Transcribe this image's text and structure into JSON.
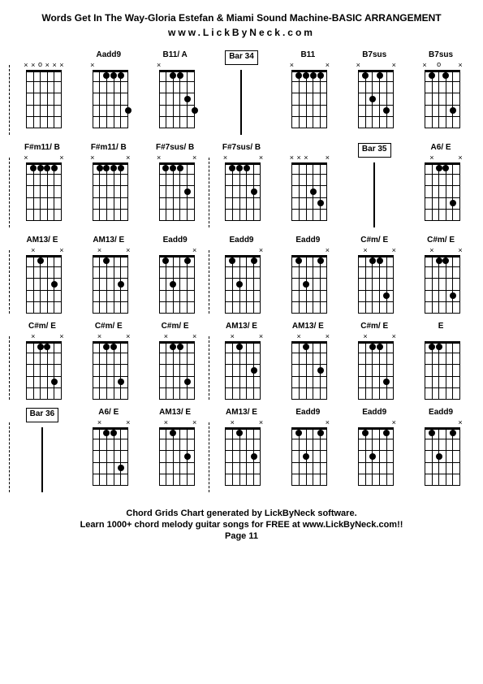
{
  "header": {
    "title": "Words Get In The Way-Gloria Estefan & Miami Sound Machine-BASIC ARRANGEMENT",
    "subtitle": "www.LickByNeck.com"
  },
  "footer": {
    "line1": "Chord Grids Chart generated by LickByNeck software.",
    "line2": "Learn 1000+ chord melody guitar songs for FREE at www.LickByNeck.com!!",
    "line3": "Page 11"
  },
  "chords": [
    {
      "row": 0,
      "col": 0,
      "label": "",
      "type": "chord",
      "markers": [
        "x",
        "x",
        "o",
        "x",
        "x",
        "x"
      ],
      "dots": [],
      "barLine": true
    },
    {
      "row": 0,
      "col": 1,
      "label": "Aadd9",
      "type": "chord",
      "markers": [
        "x",
        "",
        "",
        "",
        "",
        ""
      ],
      "dots": [
        {
          "s": 1,
          "f": 0
        },
        {
          "s": 2,
          "f": 1
        },
        {
          "s": 3,
          "f": 1
        },
        {
          "s": 4,
          "f": 1
        },
        {
          "s": 5,
          "f": 4
        }
      ]
    },
    {
      "row": 0,
      "col": 2,
      "label": "B11/ A",
      "type": "chord",
      "markers": [
        "x",
        "",
        "",
        "",
        "",
        ""
      ],
      "dots": [
        {
          "s": 1,
          "f": 0
        },
        {
          "s": 2,
          "f": 1
        },
        {
          "s": 3,
          "f": 1
        },
        {
          "s": 4,
          "f": 3
        },
        {
          "s": 5,
          "f": 4
        }
      ]
    },
    {
      "row": 0,
      "col": 3,
      "label": "Bar 34",
      "type": "bar",
      "boxed": true
    },
    {
      "row": 0,
      "col": 4,
      "label": "B11",
      "type": "chord",
      "markers": [
        "x",
        "",
        "",
        "",
        "",
        "x"
      ],
      "dots": [
        {
          "s": 1,
          "f": 1
        },
        {
          "s": 2,
          "f": 1
        },
        {
          "s": 3,
          "f": 1
        },
        {
          "s": 4,
          "f": 1
        }
      ]
    },
    {
      "row": 0,
      "col": 5,
      "label": "B7sus",
      "type": "chord",
      "markers": [
        "x",
        "",
        "",
        "",
        "",
        "x"
      ],
      "dots": [
        {
          "s": 1,
          "f": 1
        },
        {
          "s": 2,
          "f": 3
        },
        {
          "s": 3,
          "f": 1
        },
        {
          "s": 4,
          "f": 4
        }
      ]
    },
    {
      "row": 0,
      "col": 6,
      "label": "B7sus",
      "type": "chord",
      "markers": [
        "x",
        "",
        "o",
        "",
        "",
        "x"
      ],
      "dots": [
        {
          "s": 1,
          "f": 1
        },
        {
          "s": 3,
          "f": 1
        },
        {
          "s": 4,
          "f": 4
        }
      ]
    },
    {
      "row": 1,
      "col": 0,
      "label": "F#m11/ B",
      "type": "chord",
      "markers": [
        "x",
        "",
        "",
        "",
        "",
        "x"
      ],
      "dots": [
        {
          "s": 1,
          "f": 1
        },
        {
          "s": 2,
          "f": 1
        },
        {
          "s": 3,
          "f": 1
        },
        {
          "s": 4,
          "f": 1
        }
      ],
      "barLine": true
    },
    {
      "row": 1,
      "col": 1,
      "label": "F#m11/ B",
      "type": "chord",
      "markers": [
        "x",
        "",
        "",
        "",
        "",
        "x"
      ],
      "dots": [
        {
          "s": 1,
          "f": 1
        },
        {
          "s": 2,
          "f": 1
        },
        {
          "s": 3,
          "f": 1
        },
        {
          "s": 4,
          "f": 1
        }
      ]
    },
    {
      "row": 1,
      "col": 2,
      "label": "F#7sus/ B",
      "type": "chord",
      "markers": [
        "x",
        "",
        "",
        "",
        "",
        "x"
      ],
      "dots": [
        {
          "s": 1,
          "f": 1
        },
        {
          "s": 2,
          "f": 1
        },
        {
          "s": 3,
          "f": 1
        },
        {
          "s": 4,
          "f": 3
        }
      ]
    },
    {
      "row": 1,
      "col": 3,
      "label": "F#7sus/ B",
      "type": "chord",
      "markers": [
        "x",
        "",
        "",
        "",
        "",
        "x"
      ],
      "dots": [
        {
          "s": 1,
          "f": 1
        },
        {
          "s": 2,
          "f": 1
        },
        {
          "s": 3,
          "f": 1
        },
        {
          "s": 4,
          "f": 3
        }
      ],
      "barLine": true
    },
    {
      "row": 1,
      "col": 4,
      "label": "",
      "type": "chord",
      "markers": [
        "x",
        "x",
        "x",
        "",
        "",
        "x"
      ],
      "dots": [
        {
          "s": 3,
          "f": 3
        },
        {
          "s": 4,
          "f": 4
        }
      ]
    },
    {
      "row": 1,
      "col": 5,
      "label": "Bar 35",
      "type": "bar",
      "boxed": true
    },
    {
      "row": 1,
      "col": 6,
      "label": "A6/ E",
      "type": "chord",
      "markers": [
        "",
        "x",
        "",
        "",
        "",
        "x"
      ],
      "dots": [
        {
          "s": 0,
          "f": 0
        },
        {
          "s": 2,
          "f": 1
        },
        {
          "s": 3,
          "f": 1
        },
        {
          "s": 4,
          "f": 4
        }
      ]
    },
    {
      "row": 2,
      "col": 0,
      "label": "AM13/ E",
      "type": "chord",
      "markers": [
        "",
        "x",
        "",
        "",
        "",
        "x"
      ],
      "dots": [
        {
          "s": 0,
          "f": 0
        },
        {
          "s": 2,
          "f": 1
        },
        {
          "s": 3,
          "f": 0
        },
        {
          "s": 4,
          "f": 3
        }
      ],
      "barLine": true
    },
    {
      "row": 2,
      "col": 1,
      "label": "AM13/ E",
      "type": "chord",
      "markers": [
        "",
        "x",
        "",
        "",
        "",
        "x"
      ],
      "dots": [
        {
          "s": 0,
          "f": 0
        },
        {
          "s": 2,
          "f": 1
        },
        {
          "s": 3,
          "f": 0
        },
        {
          "s": 4,
          "f": 3
        }
      ]
    },
    {
      "row": 2,
      "col": 2,
      "label": "Eadd9",
      "type": "chord",
      "markers": [
        "",
        "",
        "",
        "",
        "",
        "x"
      ],
      "dots": [
        {
          "s": 0,
          "f": 0
        },
        {
          "s": 1,
          "f": 1
        },
        {
          "s": 2,
          "f": 3
        },
        {
          "s": 3,
          "f": 0
        },
        {
          "s": 4,
          "f": 1
        }
      ]
    },
    {
      "row": 2,
      "col": 3,
      "label": "Eadd9",
      "type": "chord",
      "markers": [
        "",
        "",
        "",
        "",
        "",
        "x"
      ],
      "dots": [
        {
          "s": 0,
          "f": 0
        },
        {
          "s": 1,
          "f": 1
        },
        {
          "s": 2,
          "f": 3
        },
        {
          "s": 3,
          "f": 0
        },
        {
          "s": 4,
          "f": 1
        }
      ],
      "barLine": true
    },
    {
      "row": 2,
      "col": 4,
      "label": "Eadd9",
      "type": "chord",
      "markers": [
        "",
        "",
        "",
        "",
        "",
        "x"
      ],
      "dots": [
        {
          "s": 0,
          "f": 0
        },
        {
          "s": 1,
          "f": 1
        },
        {
          "s": 2,
          "f": 3
        },
        {
          "s": 3,
          "f": 0
        },
        {
          "s": 4,
          "f": 1
        }
      ]
    },
    {
      "row": 2,
      "col": 5,
      "label": "C#m/ E",
      "type": "chord",
      "markers": [
        "",
        "x",
        "",
        "",
        "",
        "x"
      ],
      "dots": [
        {
          "s": 0,
          "f": 0
        },
        {
          "s": 2,
          "f": 1
        },
        {
          "s": 3,
          "f": 1
        },
        {
          "s": 4,
          "f": 4
        }
      ]
    },
    {
      "row": 2,
      "col": 6,
      "label": "C#m/ E",
      "type": "chord",
      "markers": [
        "",
        "x",
        "",
        "",
        "",
        "x"
      ],
      "dots": [
        {
          "s": 0,
          "f": 0
        },
        {
          "s": 2,
          "f": 1
        },
        {
          "s": 3,
          "f": 1
        },
        {
          "s": 4,
          "f": 4
        }
      ]
    },
    {
      "row": 3,
      "col": 0,
      "label": "C#m/ E",
      "type": "chord",
      "markers": [
        "",
        "x",
        "",
        "",
        "",
        "x"
      ],
      "dots": [
        {
          "s": 0,
          "f": 0
        },
        {
          "s": 2,
          "f": 1
        },
        {
          "s": 3,
          "f": 1
        },
        {
          "s": 4,
          "f": 4
        }
      ],
      "barLine": true
    },
    {
      "row": 3,
      "col": 1,
      "label": "C#m/ E",
      "type": "chord",
      "markers": [
        "",
        "x",
        "",
        "",
        "",
        "x"
      ],
      "dots": [
        {
          "s": 0,
          "f": 0
        },
        {
          "s": 2,
          "f": 1
        },
        {
          "s": 3,
          "f": 1
        },
        {
          "s": 4,
          "f": 4
        }
      ]
    },
    {
      "row": 3,
      "col": 2,
      "label": "C#m/ E",
      "type": "chord",
      "markers": [
        "",
        "x",
        "",
        "",
        "",
        "x"
      ],
      "dots": [
        {
          "s": 0,
          "f": 0
        },
        {
          "s": 2,
          "f": 1
        },
        {
          "s": 3,
          "f": 1
        },
        {
          "s": 4,
          "f": 4
        }
      ]
    },
    {
      "row": 3,
      "col": 3,
      "label": "AM13/ E",
      "type": "chord",
      "markers": [
        "",
        "x",
        "",
        "",
        "",
        "x"
      ],
      "dots": [
        {
          "s": 0,
          "f": 0
        },
        {
          "s": 2,
          "f": 1
        },
        {
          "s": 3,
          "f": 0
        },
        {
          "s": 4,
          "f": 3
        }
      ],
      "barLine": true
    },
    {
      "row": 3,
      "col": 4,
      "label": "AM13/ E",
      "type": "chord",
      "markers": [
        "",
        "x",
        "",
        "",
        "",
        "x"
      ],
      "dots": [
        {
          "s": 0,
          "f": 0
        },
        {
          "s": 2,
          "f": 1
        },
        {
          "s": 3,
          "f": 0
        },
        {
          "s": 4,
          "f": 3
        }
      ]
    },
    {
      "row": 3,
      "col": 5,
      "label": "C#m/ E",
      "type": "chord",
      "markers": [
        "",
        "x",
        "",
        "",
        "",
        "x"
      ],
      "dots": [
        {
          "s": 0,
          "f": 0
        },
        {
          "s": 2,
          "f": 1
        },
        {
          "s": 3,
          "f": 1
        },
        {
          "s": 4,
          "f": 4
        }
      ]
    },
    {
      "row": 3,
      "col": 6,
      "label": "E",
      "type": "chord",
      "markers": [
        "",
        "",
        "",
        "",
        "",
        ""
      ],
      "dots": [
        {
          "s": 0,
          "f": 0
        },
        {
          "s": 1,
          "f": 1
        },
        {
          "s": 2,
          "f": 1
        },
        {
          "s": 3,
          "f": 0
        },
        {
          "s": 4,
          "f": 0
        },
        {
          "s": 5,
          "f": 0
        }
      ]
    },
    {
      "row": 4,
      "col": 0,
      "label": "Bar 36",
      "type": "bar",
      "boxed": true,
      "barLine": true
    },
    {
      "row": 4,
      "col": 1,
      "label": "A6/ E",
      "type": "chord",
      "markers": [
        "",
        "x",
        "",
        "",
        "",
        "x"
      ],
      "dots": [
        {
          "s": 0,
          "f": 0
        },
        {
          "s": 2,
          "f": 1
        },
        {
          "s": 3,
          "f": 1
        },
        {
          "s": 4,
          "f": 4
        }
      ]
    },
    {
      "row": 4,
      "col": 2,
      "label": "AM13/ E",
      "type": "chord",
      "markers": [
        "",
        "x",
        "",
        "",
        "",
        "x"
      ],
      "dots": [
        {
          "s": 0,
          "f": 0
        },
        {
          "s": 2,
          "f": 1
        },
        {
          "s": 3,
          "f": 0
        },
        {
          "s": 4,
          "f": 3
        }
      ]
    },
    {
      "row": 4,
      "col": 3,
      "label": "AM13/ E",
      "type": "chord",
      "markers": [
        "",
        "x",
        "",
        "",
        "",
        "x"
      ],
      "dots": [
        {
          "s": 0,
          "f": 0
        },
        {
          "s": 2,
          "f": 1
        },
        {
          "s": 3,
          "f": 0
        },
        {
          "s": 4,
          "f": 3
        }
      ],
      "barLine": true
    },
    {
      "row": 4,
      "col": 4,
      "label": "Eadd9",
      "type": "chord",
      "markers": [
        "",
        "",
        "",
        "",
        "",
        "x"
      ],
      "dots": [
        {
          "s": 0,
          "f": 0
        },
        {
          "s": 1,
          "f": 1
        },
        {
          "s": 2,
          "f": 3
        },
        {
          "s": 3,
          "f": 0
        },
        {
          "s": 4,
          "f": 1
        }
      ]
    },
    {
      "row": 4,
      "col": 5,
      "label": "Eadd9",
      "type": "chord",
      "markers": [
        "",
        "",
        "",
        "",
        "",
        "x"
      ],
      "dots": [
        {
          "s": 0,
          "f": 0
        },
        {
          "s": 1,
          "f": 1
        },
        {
          "s": 2,
          "f": 3
        },
        {
          "s": 3,
          "f": 0
        },
        {
          "s": 4,
          "f": 1
        }
      ]
    },
    {
      "row": 4,
      "col": 6,
      "label": "Eadd9",
      "type": "chord",
      "markers": [
        "",
        "",
        "",
        "",
        "",
        "x"
      ],
      "dots": [
        {
          "s": 0,
          "f": 0
        },
        {
          "s": 1,
          "f": 1
        },
        {
          "s": 2,
          "f": 3
        },
        {
          "s": 3,
          "f": 0
        },
        {
          "s": 4,
          "f": 1
        }
      ]
    }
  ],
  "diagram": {
    "numFrets": 5,
    "numStrings": 6,
    "stringSpacing": 8.8,
    "fretSpacing": 14.4,
    "colors": {
      "line": "#000000",
      "dot": "#000000",
      "text": "#000000",
      "bg": "#ffffff"
    }
  }
}
